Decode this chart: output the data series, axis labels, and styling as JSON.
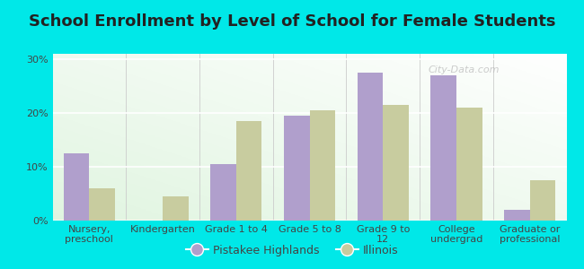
{
  "title": "School Enrollment by Level of School for Female Students",
  "categories": [
    "Nursery,\npreschool",
    "Kindergarten",
    "Grade 1 to 4",
    "Grade 5 to 8",
    "Grade 9 to\n12",
    "College\nundergrad",
    "Graduate or\nprofessional"
  ],
  "pistakee": [
    12.5,
    0.0,
    10.5,
    19.5,
    27.5,
    27.0,
    2.0
  ],
  "illinois": [
    6.0,
    4.5,
    18.5,
    20.5,
    21.5,
    21.0,
    7.5
  ],
  "pistakee_color": "#b09fcc",
  "illinois_color": "#c8cc9f",
  "background_outer": "#00e8e8",
  "yticks": [
    0,
    10,
    20,
    30
  ],
  "ylim": [
    0,
    31
  ],
  "bar_width": 0.35,
  "title_fontsize": 13,
  "tick_fontsize": 8,
  "legend_fontsize": 9,
  "watermark": "City-Data.com",
  "legend_label1": "Pistakee Highlands",
  "legend_label2": "Illinois"
}
